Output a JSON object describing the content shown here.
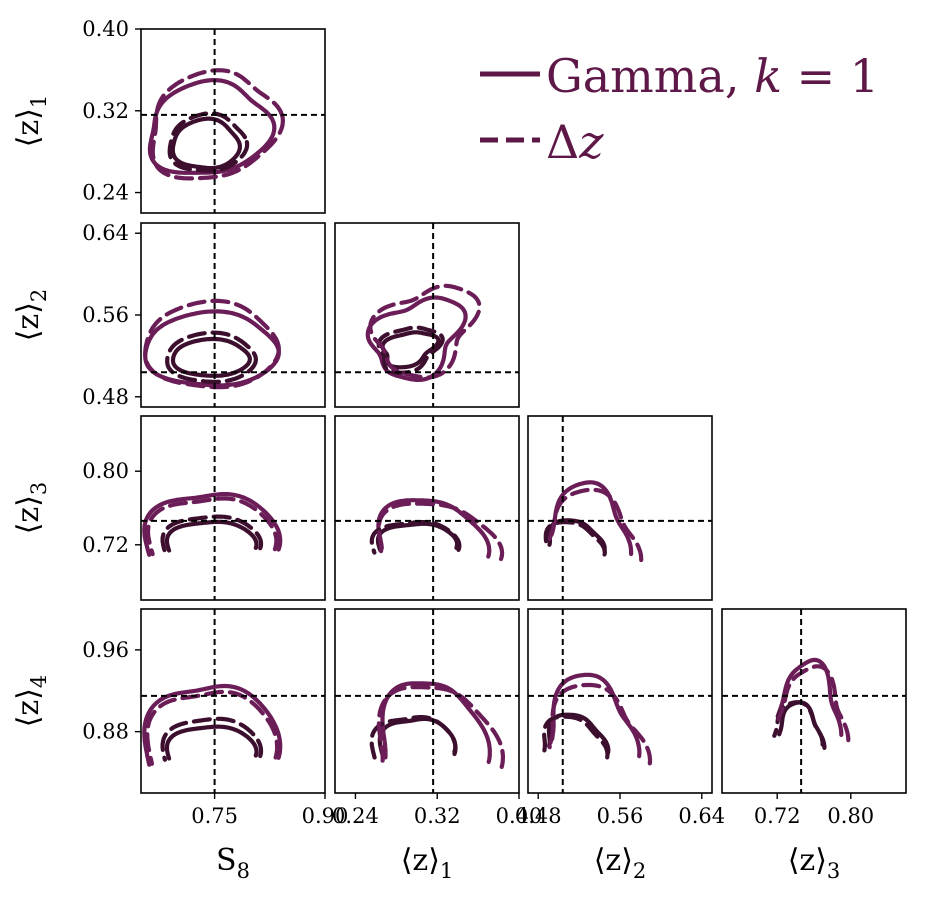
{
  "chart_data": {
    "type": "contour",
    "params": [
      "S8",
      "z1",
      "z2",
      "z3",
      "z4"
    ],
    "param_ranges": {
      "S8": [
        0.65,
        0.9
      ],
      "z1": [
        0.22,
        0.4
      ],
      "z2": [
        0.47,
        0.65
      ],
      "z3": [
        0.66,
        0.86
      ],
      "z4": [
        0.82,
        1.0
      ]
    },
    "fiducial": {
      "S8": 0.75,
      "z1": 0.316,
      "z2": 0.504,
      "z3": 0.746,
      "z4": 0.915
    },
    "xlabels": {
      "S8": {
        "main": "S",
        "sub": "8"
      },
      "z1": {
        "main": "⟨z⟩",
        "sub": "1"
      },
      "z2": {
        "main": "⟨z⟩",
        "sub": "2"
      },
      "z3": {
        "main": "⟨z⟩",
        "sub": "3"
      }
    },
    "ylabels": {
      "z1": {
        "main": "⟨z⟩",
        "sub": "1"
      },
      "z2": {
        "main": "⟨z⟩",
        "sub": "2"
      },
      "z3": {
        "main": "⟨z⟩",
        "sub": "3"
      },
      "z4": {
        "main": "⟨z⟩",
        "sub": "4"
      }
    },
    "xticks": {
      "S8": [
        "0.75",
        "0.90"
      ],
      "z1": [
        "0.24",
        "0.32",
        "0.40"
      ],
      "z2": [
        "0.48",
        "0.56",
        "0.64"
      ],
      "z3": [
        "0.72",
        "0.80"
      ]
    },
    "yticks": {
      "z1": [
        "0.24",
        "0.32",
        "0.40"
      ],
      "z2": [
        "0.48",
        "0.56",
        "0.64"
      ],
      "z3": [
        "0.72",
        "0.80"
      ],
      "z4": [
        "0.88",
        "0.96"
      ]
    },
    "series": [
      {
        "name": "Gamma, k = 1",
        "linestyle": "solid"
      },
      {
        "name": "Δz",
        "linestyle": "dashed"
      }
    ],
    "legend": {
      "placement": "top-right",
      "entries": [
        {
          "main": "Gamma, ",
          "ital": "k",
          "rest": " = 1"
        },
        {
          "main": "Δ",
          "ital": "z",
          "rest": ""
        }
      ]
    },
    "colors": {
      "inner": "#3d0f2f",
      "outer": "#6b1d57",
      "legend": "#5e1848"
    },
    "contours": {
      "S8|z1": {
        "solid": [
          {
            "level": 68,
            "c": [
              0.738,
              0.287
            ],
            "r": [
              0.045,
              0.024
            ],
            "tilt": 0.0,
            "w": 0.05,
            "open": false
          },
          {
            "level": 95,
            "c": [
              0.742,
              0.302
            ],
            "r": [
              0.083,
              0.045
            ],
            "tilt": 0.12,
            "w": 0.07,
            "open": false
          }
        ],
        "dashed": [
          {
            "level": 68,
            "c": [
              0.74,
              0.288
            ],
            "r": [
              0.052,
              0.028
            ],
            "tilt": 0.05,
            "w": 0.05,
            "open": false
          },
          {
            "level": 95,
            "c": [
              0.748,
              0.305
            ],
            "r": [
              0.088,
              0.052
            ],
            "tilt": 0.18,
            "w": 0.07,
            "open": false
          }
        ]
      },
      "S8|z2": {
        "solid": [
          {
            "level": 68,
            "c": [
              0.745,
              0.518
            ],
            "r": [
              0.052,
              0.018
            ],
            "tilt": 0.0,
            "w": 0.03,
            "open": false
          },
          {
            "level": 95,
            "c": [
              0.745,
              0.526
            ],
            "r": [
              0.09,
              0.036
            ],
            "tilt": 0.0,
            "w": 0.04,
            "open": false
          }
        ],
        "dashed": [
          {
            "level": 68,
            "c": [
              0.745,
              0.518
            ],
            "r": [
              0.06,
              0.024
            ],
            "tilt": 0.0,
            "w": 0.03,
            "open": false
          },
          {
            "level": 95,
            "c": [
              0.745,
              0.53
            ],
            "r": [
              0.09,
              0.042
            ],
            "tilt": 0.0,
            "w": 0.04,
            "open": false
          }
        ]
      },
      "z1|z2": {
        "solid": [
          {
            "level": 68,
            "c": [
              0.292,
              0.527
            ],
            "r": [
              0.028,
              0.016
            ],
            "tilt": 0.45,
            "w": 0.12,
            "open": false
          },
          {
            "level": 95,
            "c": [
              0.3,
              0.538
            ],
            "r": [
              0.052,
              0.036
            ],
            "tilt": 0.6,
            "w": 0.15,
            "open": false
          }
        ],
        "dashed": [
          {
            "level": 68,
            "c": [
              0.292,
              0.527
            ],
            "r": [
              0.032,
              0.021
            ],
            "tilt": 0.45,
            "w": 0.12,
            "open": false
          },
          {
            "level": 95,
            "c": [
              0.308,
              0.545
            ],
            "r": [
              0.058,
              0.04
            ],
            "tilt": 0.6,
            "w": 0.15,
            "open": false
          }
        ]
      },
      "S8|z3": {
        "solid": [
          {
            "level": 68,
            "c": [
              0.745,
              0.718
            ],
            "r": [
              0.06,
              0.028
            ],
            "tilt": 0.0,
            "w": 0.05,
            "open": true
          },
          {
            "level": 95,
            "c": [
              0.745,
              0.718
            ],
            "r": [
              0.09,
              0.06
            ],
            "tilt": 0.0,
            "w": 0.07,
            "open": true
          }
        ],
        "dashed": [
          {
            "level": 68,
            "c": [
              0.745,
              0.718
            ],
            "r": [
              0.066,
              0.034
            ],
            "tilt": 0.0,
            "w": 0.05,
            "open": true
          },
          {
            "level": 95,
            "c": [
              0.745,
              0.718
            ],
            "r": [
              0.085,
              0.055
            ],
            "tilt": 0.0,
            "w": 0.07,
            "open": true
          }
        ]
      },
      "z1|z3": {
        "solid": [
          {
            "level": 68,
            "c": [
              0.3,
              0.718
            ],
            "r": [
              0.038,
              0.026
            ],
            "tilt": 0.0,
            "w": 0.06,
            "open": true
          },
          {
            "level": 95,
            "c": [
              0.312,
              0.716
            ],
            "r": [
              0.054,
              0.054
            ],
            "tilt": 0.2,
            "w": 0.08,
            "open": true
          }
        ],
        "dashed": [
          {
            "level": 68,
            "c": [
              0.298,
              0.716
            ],
            "r": [
              0.042,
              0.03
            ],
            "tilt": 0.0,
            "w": 0.06,
            "open": true
          },
          {
            "level": 95,
            "c": [
              0.318,
              0.714
            ],
            "r": [
              0.06,
              0.052
            ],
            "tilt": 0.2,
            "w": 0.08,
            "open": true
          }
        ]
      },
      "z2|z3": {
        "solid": [
          {
            "level": 68,
            "c": [
              0.515,
              0.72
            ],
            "r": [
              0.028,
              0.026
            ],
            "tilt": 0.3,
            "w": 0.08,
            "open": true
          },
          {
            "level": 95,
            "c": [
              0.528,
              0.725
            ],
            "r": [
              0.044,
              0.058
            ],
            "tilt": 0.5,
            "w": 0.1,
            "open": true
          }
        ],
        "dashed": [
          {
            "level": 68,
            "c": [
              0.513,
              0.716
            ],
            "r": [
              0.03,
              0.028
            ],
            "tilt": 0.3,
            "w": 0.08,
            "open": true
          },
          {
            "level": 95,
            "c": [
              0.532,
              0.72
            ],
            "r": [
              0.05,
              0.055
            ],
            "tilt": 0.5,
            "w": 0.1,
            "open": true
          }
        ]
      },
      "S8|z4": {
        "solid": [
          {
            "level": 68,
            "c": [
              0.745,
              0.858
            ],
            "r": [
              0.06,
              0.028
            ],
            "tilt": 0.0,
            "w": 0.05,
            "open": true
          },
          {
            "level": 95,
            "c": [
              0.745,
              0.858
            ],
            "r": [
              0.09,
              0.07
            ],
            "tilt": 0.0,
            "w": 0.07,
            "open": true
          }
        ],
        "dashed": [
          {
            "level": 68,
            "c": [
              0.745,
              0.858
            ],
            "r": [
              0.066,
              0.036
            ],
            "tilt": 0.0,
            "w": 0.05,
            "open": true
          },
          {
            "level": 95,
            "c": [
              0.745,
              0.858
            ],
            "r": [
              0.086,
              0.064
            ],
            "tilt": 0.0,
            "w": 0.07,
            "open": true
          }
        ]
      },
      "z1|z4": {
        "solid": [
          {
            "level": 68,
            "c": [
              0.3,
              0.862
            ],
            "r": [
              0.036,
              0.032
            ],
            "tilt": 0.0,
            "w": 0.07,
            "open": true
          },
          {
            "level": 95,
            "c": [
              0.314,
              0.86
            ],
            "r": [
              0.052,
              0.07
            ],
            "tilt": 0.2,
            "w": 0.09,
            "open": true
          }
        ],
        "dashed": [
          {
            "level": 68,
            "c": [
              0.296,
              0.86
            ],
            "r": [
              0.04,
              0.036
            ],
            "tilt": 0.0,
            "w": 0.07,
            "open": true
          },
          {
            "level": 95,
            "c": [
              0.318,
              0.856
            ],
            "r": [
              0.06,
              0.07
            ],
            "tilt": 0.2,
            "w": 0.09,
            "open": true
          }
        ]
      },
      "z2|z4": {
        "solid": [
          {
            "level": 68,
            "c": [
              0.516,
              0.866
            ],
            "r": [
              0.03,
              0.03
            ],
            "tilt": 0.3,
            "w": 0.09,
            "open": true
          },
          {
            "level": 95,
            "c": [
              0.53,
              0.87
            ],
            "r": [
              0.046,
              0.062
            ],
            "tilt": 0.4,
            "w": 0.11,
            "open": true
          }
        ],
        "dashed": [
          {
            "level": 68,
            "c": [
              0.513,
              0.862
            ],
            "r": [
              0.032,
              0.032
            ],
            "tilt": 0.3,
            "w": 0.09,
            "open": true
          },
          {
            "level": 95,
            "c": [
              0.534,
              0.864
            ],
            "r": [
              0.052,
              0.058
            ],
            "tilt": 0.4,
            "w": 0.11,
            "open": true
          }
        ]
      },
      "z3|z4": {
        "solid": [
          {
            "level": 68,
            "c": [
              0.744,
              0.876
            ],
            "r": [
              0.026,
              0.03
            ],
            "tilt": 0.5,
            "w": 0.1,
            "open": true
          },
          {
            "level": 95,
            "c": [
              0.754,
              0.892
            ],
            "r": [
              0.04,
              0.052
            ],
            "tilt": 0.6,
            "w": 0.12,
            "open": true
          }
        ],
        "dashed": [
          {
            "level": 68,
            "c": [
              0.742,
              0.874
            ],
            "r": [
              0.03,
              0.032
            ],
            "tilt": 0.5,
            "w": 0.1,
            "open": true
          },
          {
            "level": 95,
            "c": [
              0.758,
              0.888
            ],
            "r": [
              0.044,
              0.05
            ],
            "tilt": 0.6,
            "w": 0.12,
            "open": true
          }
        ]
      }
    }
  }
}
